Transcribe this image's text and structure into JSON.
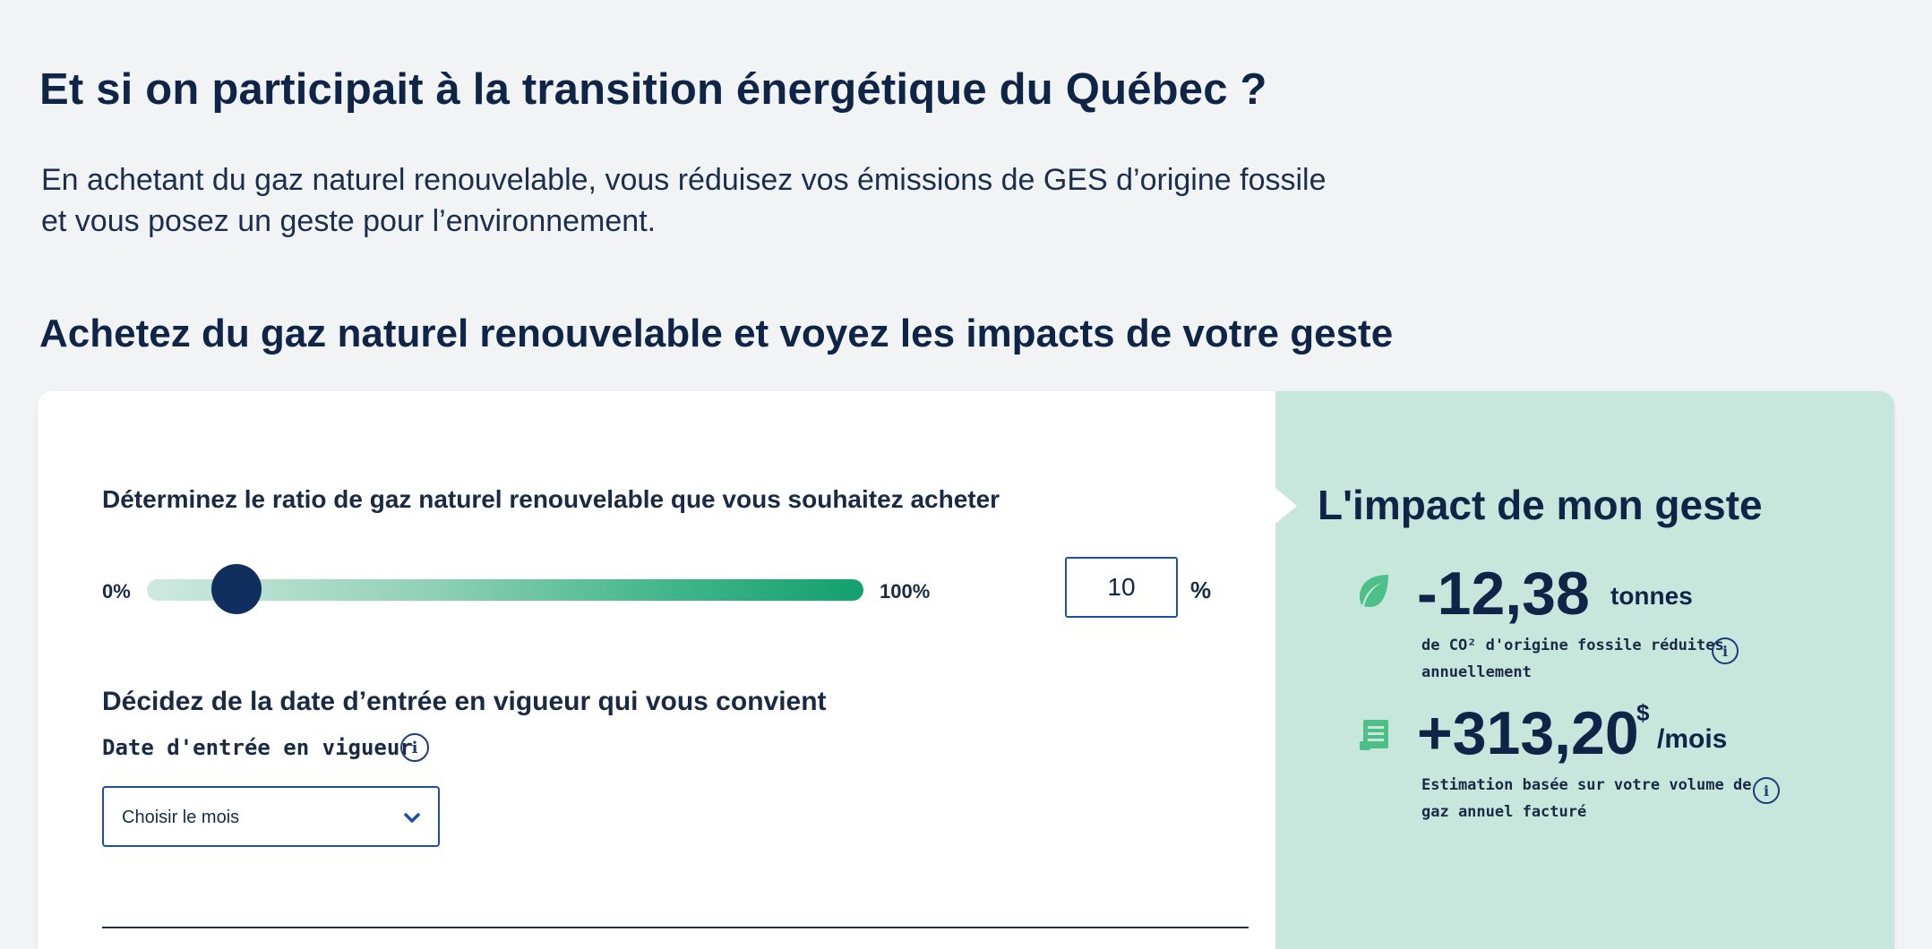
{
  "header": {
    "title": "Et si on participait à la transition énergétique du Québec ?",
    "intro_line1": "En achetant du gaz naturel renouvelable, vous réduisez vos émissions de GES d’origine fossile",
    "intro_line2": "et vous posez un geste pour l’environnement.",
    "section_title": "Achetez du gaz naturel renouvelable et voyez les impacts de votre geste"
  },
  "form": {
    "ratio_label": "Déterminez le ratio de gaz naturel renouvelable que vous souhaitez acheter",
    "slider": {
      "min_label": "0%",
      "max_label": "100%",
      "value_percent": 10
    },
    "percent_input_value": "10",
    "percent_sign": "%",
    "date_section_title": "Décidez de la date d’entrée en vigueur qui vous convient",
    "date_label": "Date d'entrée en vigueur",
    "month_select": {
      "selected": "Choisir le mois"
    }
  },
  "impact": {
    "title": "L'impact de mon geste",
    "co2": {
      "value": "-12,38",
      "unit": "tonnes",
      "desc_line1": "de CO² d'origine fossile réduites",
      "desc_line2": "annuellement"
    },
    "cost": {
      "value": "+313,20",
      "currency": "$",
      "unit": "/mois",
      "desc_line1": "Estimation basée sur votre volume de",
      "desc_line2": "gaz annuel facturé"
    }
  },
  "icons": {
    "co2_icon": "leaf-icon",
    "cost_icon": "bill-icon",
    "info": "info-icon",
    "dropdown": "chevron-down-icon"
  },
  "colors": {
    "navy": "#0f2547",
    "accent_blue": "#1d4fa3",
    "impact_bg": "#c7e7dd",
    "green_icon": "#4fbf8a",
    "slider_end": "#13a06e",
    "thumb": "#112f5e",
    "page_bg": "#f2f3f5"
  }
}
